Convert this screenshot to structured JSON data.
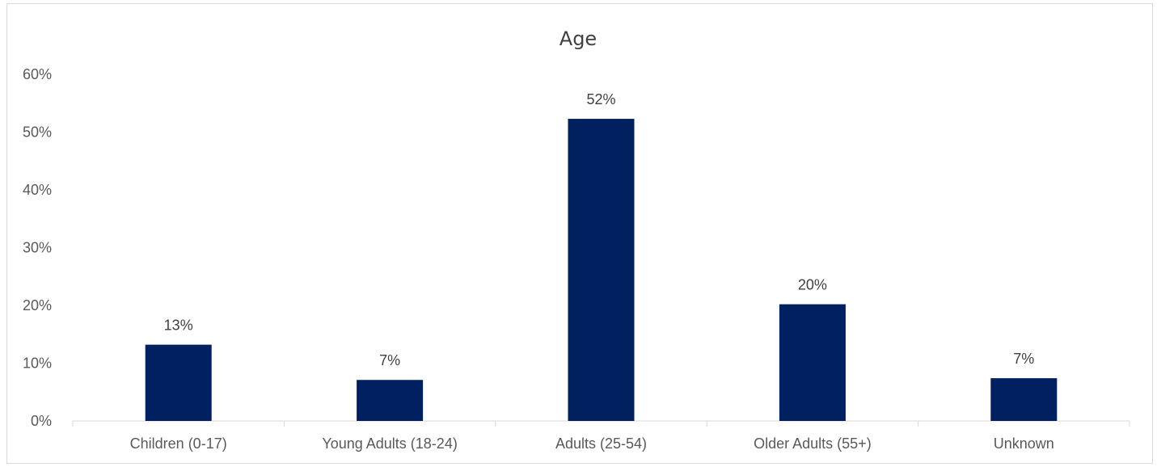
{
  "chart_data": {
    "type": "bar",
    "title": "Age",
    "xlabel": "",
    "ylabel": "",
    "categories": [
      "Children (0-17)",
      "Young Adults (18-24)",
      "Adults (25-54)",
      "Older Adults (55+)",
      "Unknown"
    ],
    "values": [
      13.2,
      7.1,
      52.3,
      20.2,
      7.4
    ],
    "data_labels": [
      "13%",
      "7%",
      "52%",
      "20%",
      "7%"
    ],
    "ylim": [
      0,
      60
    ],
    "yticks": [
      0,
      10,
      20,
      30,
      40,
      50,
      60
    ],
    "ytick_labels": [
      "0%",
      "10%",
      "20%",
      "30%",
      "40%",
      "50%",
      "60%"
    ],
    "grid": false,
    "legend": "none",
    "bar_color": "#002060"
  }
}
